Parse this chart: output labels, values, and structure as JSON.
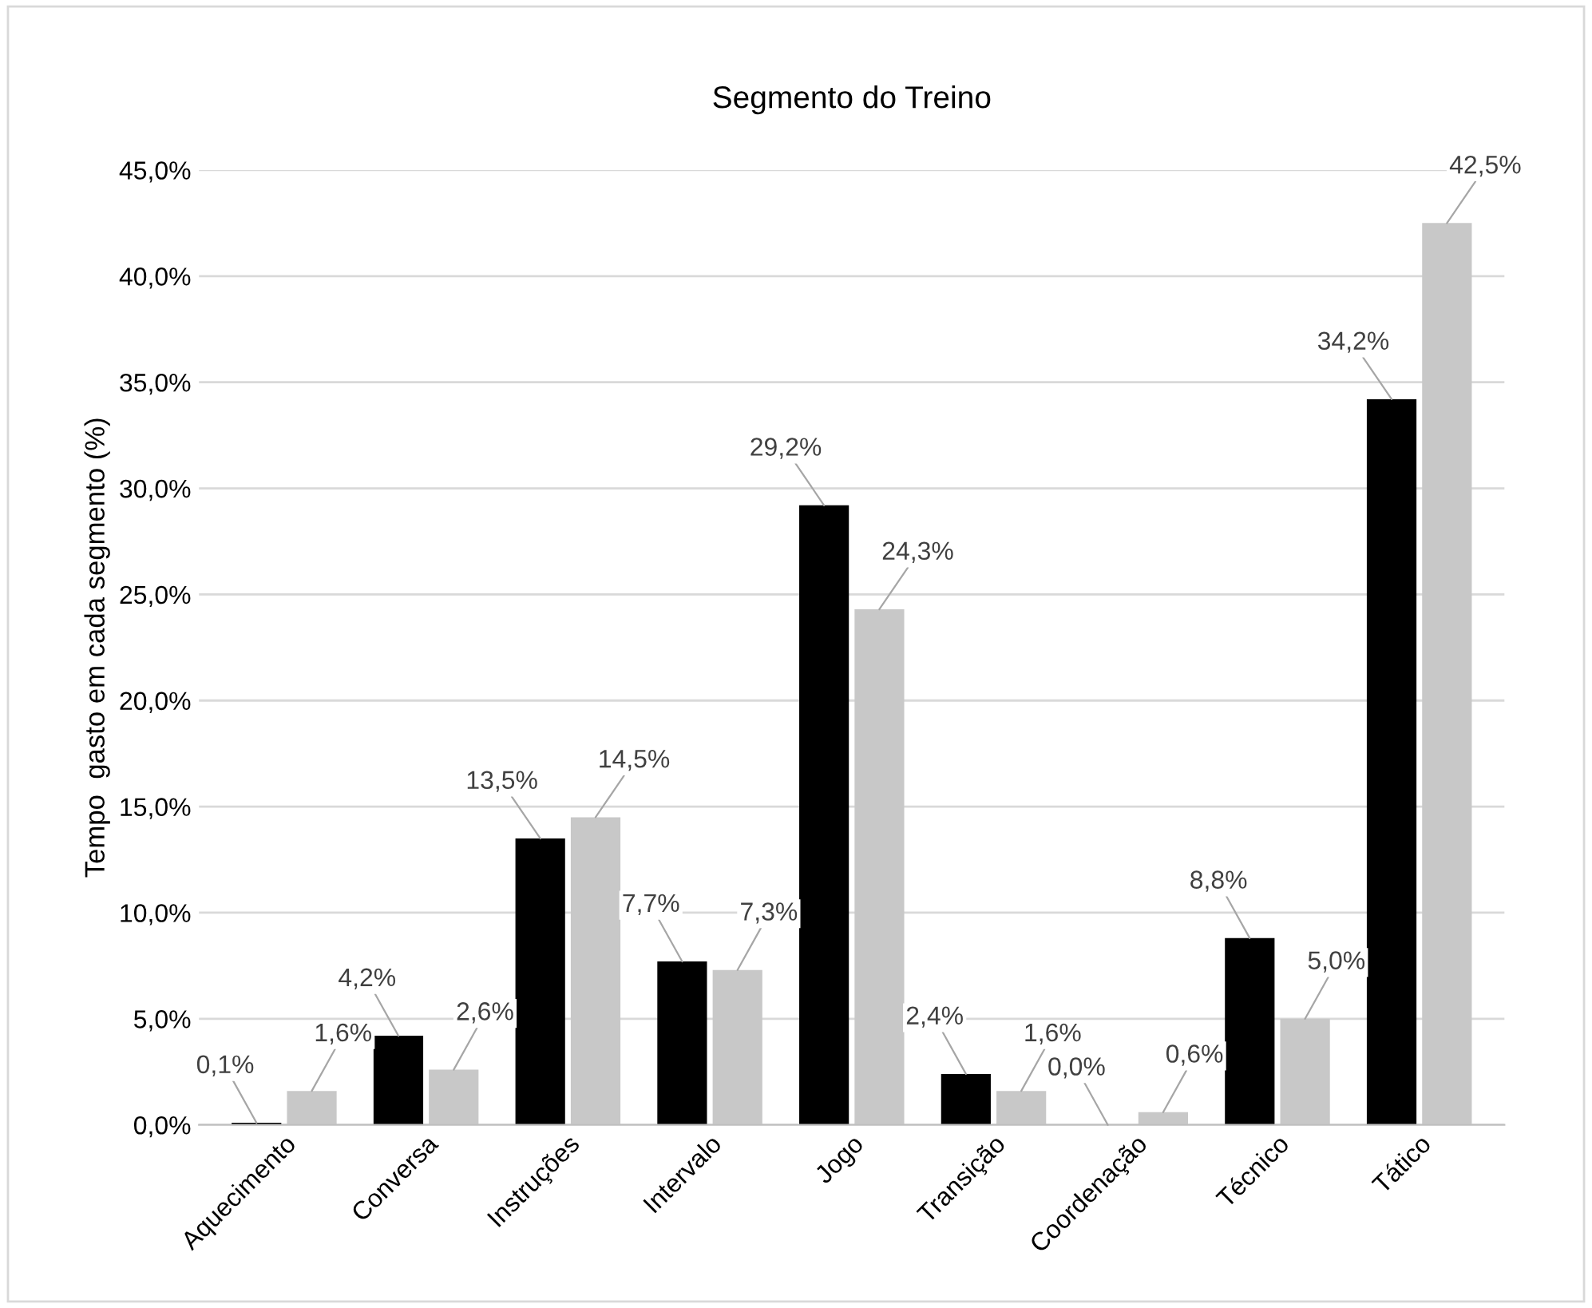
{
  "chart_data": {
    "type": "bar",
    "title": "Segmento do Treino",
    "ylabel": "Tempo  gasto em cada segmento (%)",
    "categories": [
      "Aquecimento",
      "Conversa",
      "Instruções",
      "Intervalo",
      "Jogo",
      "Transição",
      "Coordenação",
      "Técnico",
      "Tático"
    ],
    "series": [
      {
        "color": "#000000",
        "values": [
          0.1,
          4.2,
          13.5,
          7.7,
          29.2,
          2.4,
          0.0,
          8.8,
          34.2
        ],
        "value_labels": [
          "0,1%",
          "4,2%",
          "13,5%",
          "7,7%",
          "29,2%",
          "2,4%",
          "0,0%",
          "8,8%",
          "34,2%"
        ]
      },
      {
        "color": "#c8c8c8",
        "values": [
          1.6,
          2.6,
          14.5,
          7.3,
          24.3,
          1.6,
          0.6,
          5.0,
          42.5
        ],
        "value_labels": [
          "1,6%",
          "2,6%",
          "14,5%",
          "7,3%",
          "24,3%",
          "1,6%",
          "0,6%",
          "5,0%",
          "42,5%"
        ]
      }
    ],
    "ylim": [
      0,
      45
    ],
    "yticks": [
      {
        "value": 0,
        "label": "0,0%"
      },
      {
        "value": 5,
        "label": "5,0%"
      },
      {
        "value": 10,
        "label": "10,0%"
      },
      {
        "value": 15,
        "label": "15,0%"
      },
      {
        "value": 20,
        "label": "20,0%"
      },
      {
        "value": 25,
        "label": "25,0%"
      },
      {
        "value": 30,
        "label": "30,0%"
      },
      {
        "value": 35,
        "label": "35,0%"
      },
      {
        "value": 40,
        "label": "40,0%"
      },
      {
        "value": 45,
        "label": "45,0%"
      }
    ],
    "grid": "y",
    "legend": false
  }
}
